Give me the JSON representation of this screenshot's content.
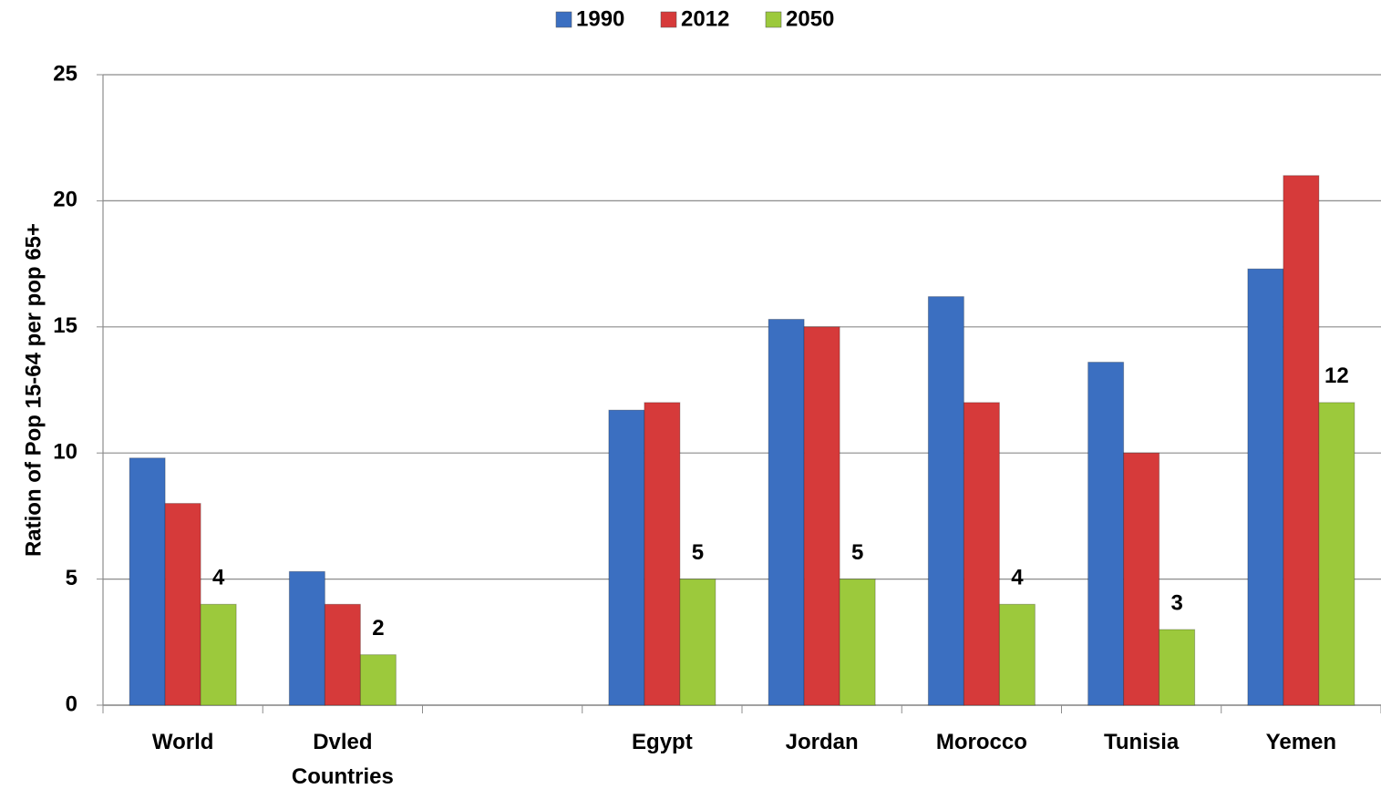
{
  "chart_data": {
    "type": "bar",
    "y_label": "Ration of Pop 15-64 per pop 65+",
    "categories": [
      "World",
      "Dvled Countries",
      null,
      "Egypt",
      "Jordan",
      "Morocco",
      "Tunisia",
      "Yemen"
    ],
    "series": [
      {
        "name": "1990",
        "color": "#3b6fc1",
        "values": [
          9.8,
          5.3,
          null,
          11.7,
          15.3,
          16.2,
          13.6,
          17.3
        ]
      },
      {
        "name": "2012",
        "color": "#d63a3a",
        "values": [
          8,
          4,
          null,
          12,
          15,
          12,
          10,
          21
        ]
      },
      {
        "name": "2050",
        "color": "#9cc93c",
        "values": [
          4,
          2,
          null,
          5,
          5,
          4,
          3,
          12
        ],
        "data_labels": true
      }
    ],
    "ylim": [
      0,
      25
    ],
    "yticks": [
      0,
      5,
      10,
      15,
      20,
      25
    ],
    "grid": true,
    "legend": "top"
  }
}
